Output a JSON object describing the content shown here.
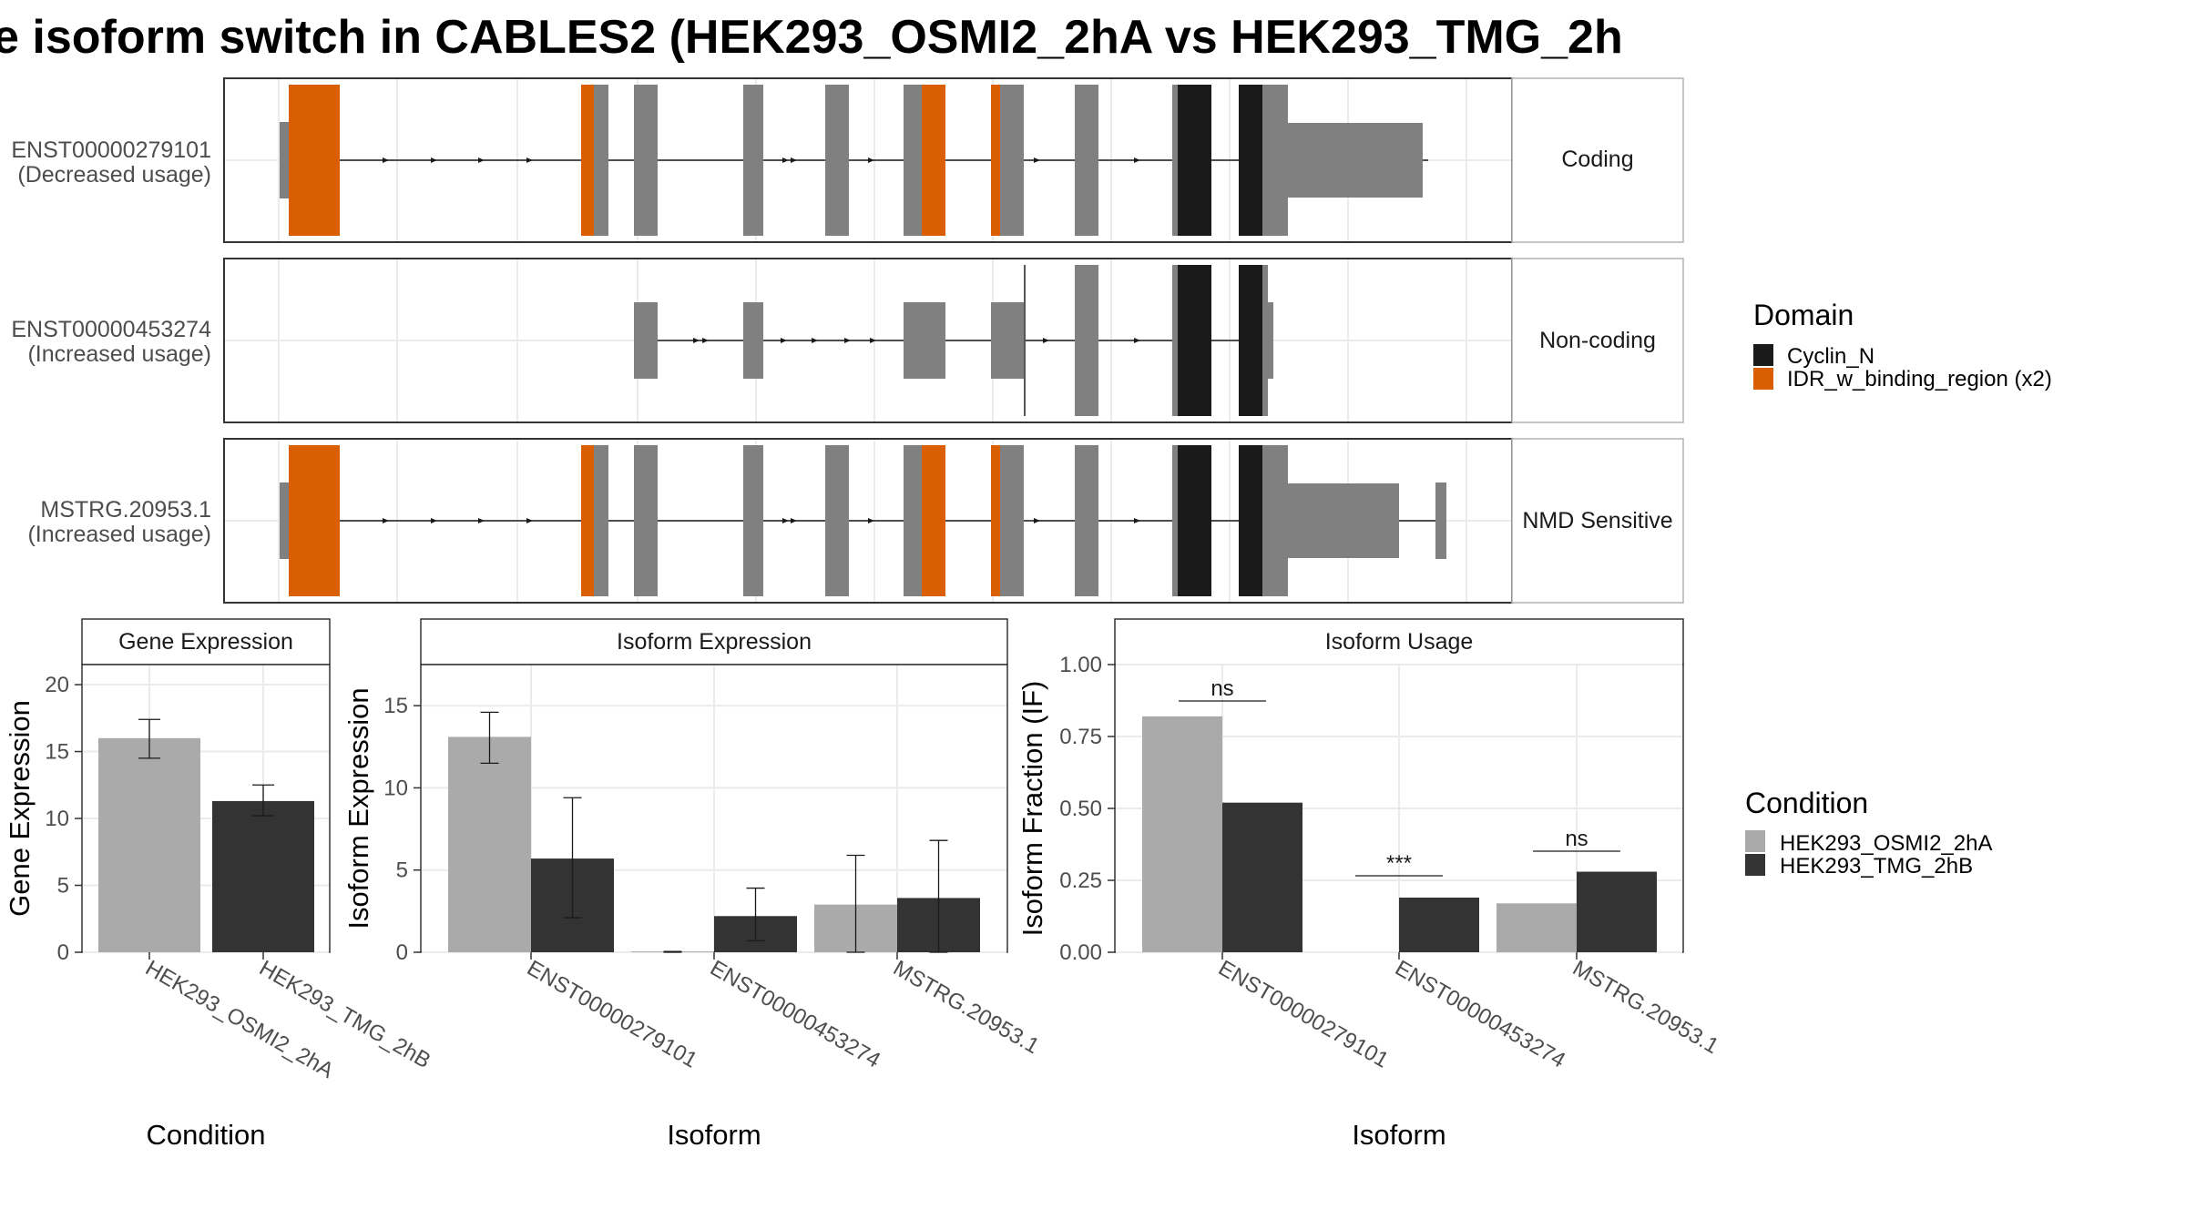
{
  "title": "e isoform switch in CABLES2 (HEK293_OSMI2_2hA vs HEK293_TMG_2h",
  "colors": {
    "exon": "#808080",
    "cyclin": "#1a1a1a",
    "idr": "#d95f02",
    "cond_a": "#aaaaaa",
    "cond_b": "#333333"
  },
  "chart_data": [
    {
      "type": "other",
      "panel": "isoform structures",
      "tracks": [
        {
          "label": "ENST00000279101",
          "sub": "(Decreased usage)",
          "strip": "Coding"
        },
        {
          "label": "ENST00000453274",
          "sub": "(Increased usage)",
          "strip": "Non-coding"
        },
        {
          "label": "MSTRG.20953.1",
          "sub": "(Increased usage)",
          "strip": "NMD Sensitive"
        }
      ],
      "legend": {
        "title": "Domain",
        "items": [
          {
            "label": "Cyclin_N",
            "color": "#1a1a1a"
          },
          {
            "label": "IDR_w_binding_region (x2)",
            "color": "#d95f02"
          }
        ]
      }
    },
    {
      "type": "bar",
      "strip": "Gene Expression",
      "ylabel": "Gene Expression",
      "xlabel": "Condition",
      "categories": [
        "HEK293_OSMI2_2hA",
        "HEK293_TMG_2hB"
      ],
      "values": [
        16.0,
        11.3
      ],
      "err_low": [
        14.5,
        10.2
      ],
      "err_high": [
        17.4,
        12.5
      ],
      "ylim": [
        0,
        21.5
      ],
      "yticks": [
        "0",
        "5",
        "10",
        "15",
        "20"
      ]
    },
    {
      "type": "bar",
      "strip": "Isoform Expression",
      "ylabel": "Isoform Expression",
      "xlabel": "Isoform",
      "categories": [
        "ENST00000279101",
        "ENST00000453274",
        "MSTRG.20953.1"
      ],
      "series": [
        {
          "values": [
            13.1,
            0.05,
            2.9
          ],
          "err_low": [
            11.5,
            0.0,
            0.0
          ],
          "err_high": [
            14.6,
            0.05,
            5.9
          ]
        },
        {
          "values": [
            5.7,
            2.2,
            3.3
          ],
          "err_low": [
            2.1,
            0.7,
            0.0
          ],
          "err_high": [
            9.4,
            3.9,
            6.8
          ]
        }
      ],
      "ylim": [
        0,
        17.5
      ],
      "yticks": [
        "0",
        "5",
        "10",
        "15"
      ]
    },
    {
      "type": "bar",
      "strip": "Isoform Usage",
      "ylabel": "Isoform Fraction (IF)",
      "xlabel": "Isoform",
      "categories": [
        "ENST00000279101",
        "ENST00000453274",
        "MSTRG.20953.1"
      ],
      "series": [
        {
          "values": [
            0.82,
            0.0,
            0.17
          ]
        },
        {
          "values": [
            0.52,
            0.19,
            0.28
          ]
        }
      ],
      "significance": [
        "ns",
        "***",
        "ns"
      ],
      "ylim": [
        0,
        1.0
      ],
      "yticks": [
        "0.00",
        "0.25",
        "0.50",
        "0.75",
        "1.00"
      ]
    }
  ],
  "condition_legend": {
    "title": "Condition",
    "items": [
      {
        "label": "HEK293_OSMI2_2hA",
        "color": "#aaaaaa"
      },
      {
        "label": "HEK293_TMG_2hB",
        "color": "#333333"
      }
    ]
  }
}
